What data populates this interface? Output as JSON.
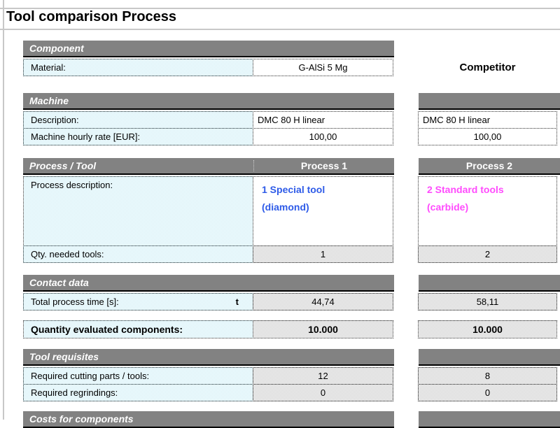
{
  "title": "Tool comparison Process",
  "competitor_label": "Competitor",
  "colors": {
    "header_bg": "#828282",
    "header_text": "#ffffff",
    "label_cell": "#cdeef6",
    "value_gray": "#c9c9c9",
    "blue": "#2e5be8",
    "magenta": "#ff4bfd"
  },
  "sections": {
    "component": {
      "header": "Component",
      "material_label": "Material:",
      "material_value": "G-AlSi 5 Mg"
    },
    "machine": {
      "header": "Machine",
      "rows": [
        {
          "label": "Description:",
          "p1": "DMC 80 H linear",
          "p2": "DMC 80 H linear"
        },
        {
          "label": "Machine hourly rate [EUR]:",
          "p1": "100,00",
          "p2": "100,00"
        }
      ]
    },
    "process": {
      "header": "Process / Tool",
      "col1": "Process 1",
      "col2": "Process 2",
      "description_label": "Process description:",
      "p1_line1": "1 Special tool",
      "p1_line2": "(diamond)",
      "p2_line1": "2 Standard tools",
      "p2_line2": "(carbide)",
      "qty_label": "Qty. needed tools:",
      "qty_p1": "1",
      "qty_p2": "2"
    },
    "contact": {
      "header": "Contact data",
      "time_label": "Total process time [s]:",
      "time_symbol": "t",
      "time_p1": "44,74",
      "time_p2": "58,11",
      "quantity_label": "Quantity evaluated components:",
      "quantity_p1": "10.000",
      "quantity_p2": "10.000"
    },
    "requisites": {
      "header": "Tool requisites",
      "rows": [
        {
          "label": "Required cutting parts / tools:",
          "p1": "12",
          "p2": "8"
        },
        {
          "label": "Required regrindings:",
          "p1": "0",
          "p2": "0"
        }
      ]
    },
    "costs": {
      "header": "Costs for components"
    }
  }
}
